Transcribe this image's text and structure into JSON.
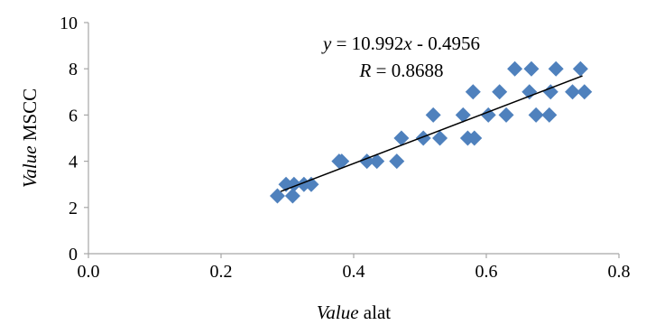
{
  "chart_data": {
    "type": "scatter",
    "title": "",
    "xlabel": {
      "italic": "Value",
      "rest": " alat"
    },
    "ylabel": {
      "italic": "Value",
      "rest": " MSCC"
    },
    "xlim": [
      0.0,
      0.8
    ],
    "ylim": [
      0,
      10
    ],
    "xticks": [
      "0.0",
      "0.2",
      "0.4",
      "0.6",
      "0.8"
    ],
    "yticks": [
      "0",
      "2",
      "4",
      "6",
      "8",
      "10"
    ],
    "grid": false,
    "legend": "none",
    "marker": "diamond",
    "marker_color": "#4f81bd",
    "trendline": {
      "slope": 10.992,
      "intercept": -0.4956,
      "x_range": [
        0.29,
        0.745
      ],
      "color": "#000000"
    },
    "annotations": {
      "equation": {
        "y_var": "y",
        "middle": " = 10.992",
        "x_var": "x",
        "tail": " - 0.4956"
      },
      "r_value": {
        "r_var": "R",
        "tail": " = 0.8688"
      }
    },
    "points": [
      {
        "x": 0.285,
        "y": 2.5
      },
      {
        "x": 0.298,
        "y": 3.0
      },
      {
        "x": 0.308,
        "y": 2.5
      },
      {
        "x": 0.31,
        "y": 3.0
      },
      {
        "x": 0.325,
        "y": 3.0
      },
      {
        "x": 0.336,
        "y": 3.0
      },
      {
        "x": 0.378,
        "y": 4.0
      },
      {
        "x": 0.382,
        "y": 4.0
      },
      {
        "x": 0.42,
        "y": 4.0
      },
      {
        "x": 0.435,
        "y": 4.0
      },
      {
        "x": 0.465,
        "y": 4.0
      },
      {
        "x": 0.472,
        "y": 5.0
      },
      {
        "x": 0.505,
        "y": 5.0
      },
      {
        "x": 0.52,
        "y": 6.0
      },
      {
        "x": 0.53,
        "y": 5.0
      },
      {
        "x": 0.565,
        "y": 6.0
      },
      {
        "x": 0.572,
        "y": 5.0
      },
      {
        "x": 0.58,
        "y": 7.0
      },
      {
        "x": 0.582,
        "y": 5.0
      },
      {
        "x": 0.603,
        "y": 6.0
      },
      {
        "x": 0.62,
        "y": 7.0
      },
      {
        "x": 0.63,
        "y": 6.0
      },
      {
        "x": 0.643,
        "y": 8.0
      },
      {
        "x": 0.665,
        "y": 7.0
      },
      {
        "x": 0.668,
        "y": 8.0
      },
      {
        "x": 0.675,
        "y": 6.0
      },
      {
        "x": 0.695,
        "y": 6.0
      },
      {
        "x": 0.697,
        "y": 7.0
      },
      {
        "x": 0.705,
        "y": 8.0
      },
      {
        "x": 0.73,
        "y": 7.0
      },
      {
        "x": 0.742,
        "y": 8.0
      },
      {
        "x": 0.748,
        "y": 7.0
      }
    ]
  }
}
